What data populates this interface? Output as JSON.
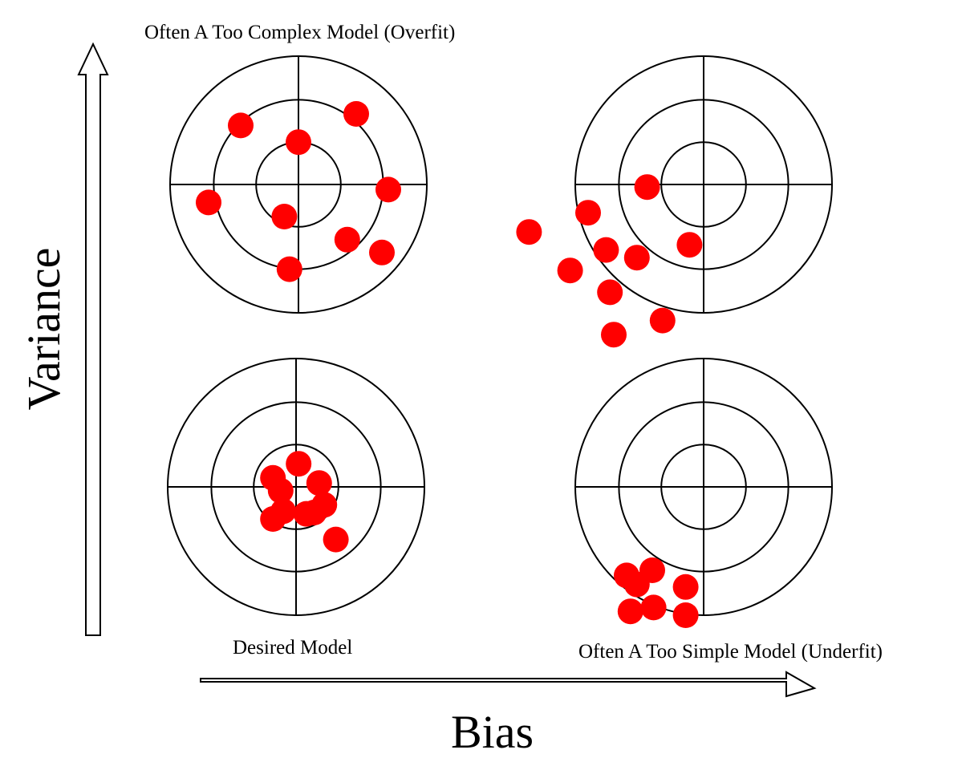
{
  "labels": {
    "top_left": "Often A Too Complex Model (Overfit)",
    "bottom_left": "Desired Model",
    "bottom_right": "Often A Too Simple Model (Underfit)",
    "x_axis": "Bias",
    "y_axis": "Variance"
  },
  "colors": {
    "point": "#ff0000",
    "line": "#000000",
    "arrow_fill": "#ffffff"
  },
  "targets": [
    {
      "id": "overfit",
      "points": [
        [
          -0.45,
          -0.46
        ],
        [
          0.45,
          -0.55
        ],
        [
          0.0,
          -0.33
        ],
        [
          -0.7,
          0.14
        ],
        [
          0.7,
          0.04
        ],
        [
          -0.11,
          0.25
        ],
        [
          0.38,
          0.43
        ],
        [
          0.65,
          0.53
        ],
        [
          -0.07,
          0.66
        ]
      ]
    },
    {
      "id": "underfit-high-variance",
      "points": [
        [
          -0.44,
          0.02
        ],
        [
          -0.9,
          0.22
        ],
        [
          -1.36,
          0.37
        ],
        [
          -0.76,
          0.51
        ],
        [
          -0.52,
          0.57
        ],
        [
          -1.04,
          0.67
        ],
        [
          -0.11,
          0.47
        ],
        [
          -0.73,
          0.84
        ],
        [
          -0.32,
          1.06
        ],
        [
          -0.7,
          1.17
        ]
      ]
    },
    {
      "id": "desired",
      "points": [
        [
          0.02,
          -0.18
        ],
        [
          -0.18,
          -0.07
        ],
        [
          0.18,
          -0.03
        ],
        [
          -0.12,
          0.03
        ],
        [
          0.22,
          0.14
        ],
        [
          -0.1,
          0.19
        ],
        [
          0.08,
          0.21
        ],
        [
          0.14,
          0.2
        ],
        [
          -0.18,
          0.25
        ],
        [
          0.31,
          0.41
        ]
      ]
    },
    {
      "id": "underfit",
      "points": [
        [
          -0.6,
          0.69
        ],
        [
          -0.4,
          0.65
        ],
        [
          -0.52,
          0.76
        ],
        [
          -0.14,
          0.78
        ],
        [
          -0.57,
          0.97
        ],
        [
          -0.39,
          0.94
        ],
        [
          -0.14,
          1.0
        ]
      ]
    }
  ]
}
